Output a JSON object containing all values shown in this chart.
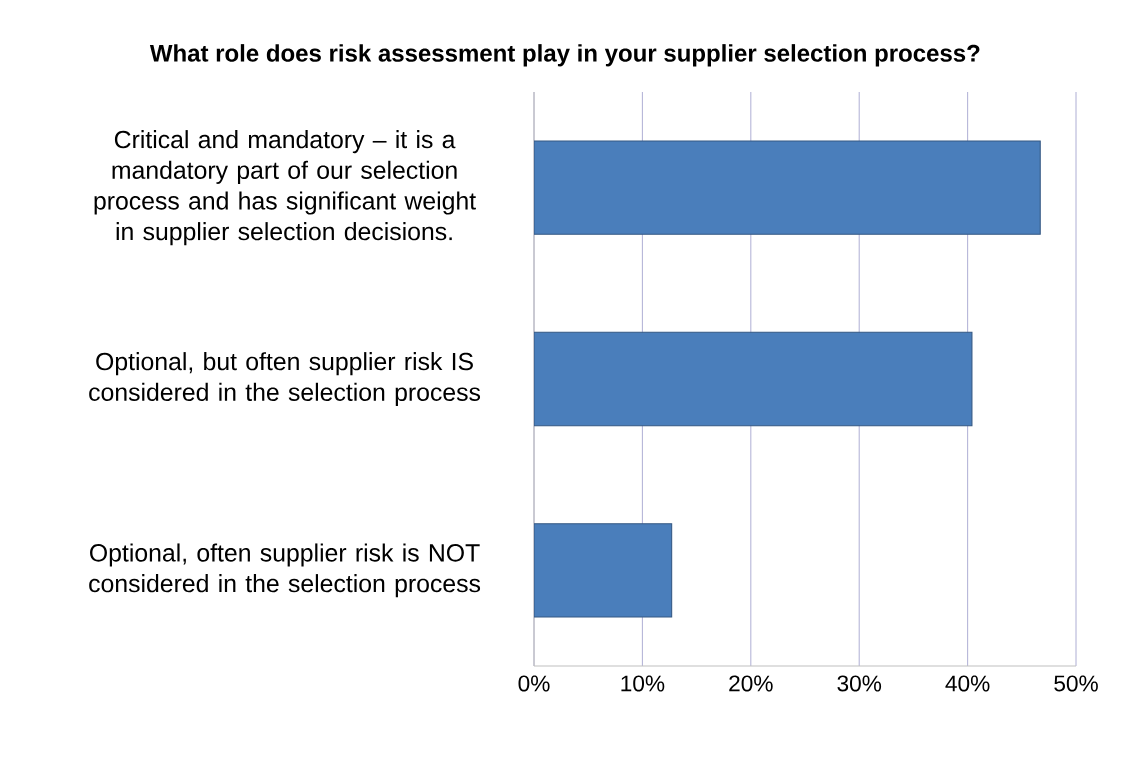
{
  "chart_data": {
    "type": "bar",
    "orientation": "horizontal",
    "title": "What role does risk assessment play in your supplier selection process?",
    "categories": [
      "Critical and mandatory – it is a mandatory part of our selection process and has significant weight in supplier selection decisions.",
      "Optional, but often supplier risk IS considered in the selection process",
      "Optional, often supplier risk is NOT considered in the selection process"
    ],
    "values": [
      46.7,
      40.4,
      12.7
    ],
    "color": "#4a7ebb",
    "xlim": [
      0,
      50
    ],
    "xticks": [
      {
        "value": 0,
        "label": "0%"
      },
      {
        "value": 10,
        "label": "10%"
      },
      {
        "value": 20,
        "label": "20%"
      },
      {
        "value": 30,
        "label": "30%"
      },
      {
        "value": 40,
        "label": "40%"
      },
      {
        "value": 50,
        "label": "50%"
      }
    ],
    "grid": "x"
  }
}
